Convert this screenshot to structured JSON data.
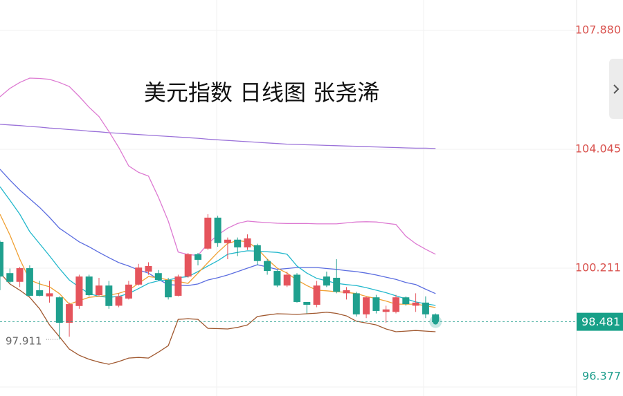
{
  "chart_data": {
    "type": "candlestick",
    "title": "美元指数 日线图 张尧浠",
    "ylim": [
      96.087,
      108.86
    ],
    "yticks": [
      {
        "value": 107.88,
        "label": "107.880"
      },
      104.045,
      100.211,
      96.377
    ],
    "grid": true,
    "up_color": "#e5545c",
    "down_color": "#1fa08e",
    "open": [
      101.06,
      100.05,
      99.77,
      100.21,
      99.5,
      99.3,
      99.27,
      98.45,
      98.99,
      99.94,
      99.34,
      99.65,
      99.0,
      99.23,
      99.68,
      100.1,
      100.05,
      99.83,
      99.32,
      99.94,
      100.66,
      100.84,
      101.84,
      101.02,
      101.13,
      100.88,
      100.95,
      100.44,
      100.12,
      99.65,
      100.0,
      99.12,
      99.03,
      99.94,
      99.9,
      99.4,
      99.4,
      98.72,
      99.27,
      98.8,
      98.8,
      99.27,
      99.0,
      99.1,
      98.72
    ],
    "high": [
      101.1,
      100.2,
      100.25,
      100.3,
      99.8,
      99.8,
      99.3,
      99.1,
      100.0,
      100.0,
      99.9,
      99.8,
      99.4,
      99.8,
      100.35,
      100.4,
      100.15,
      99.9,
      100.0,
      100.7,
      100.7,
      101.95,
      101.9,
      101.2,
      101.2,
      101.3,
      101.0,
      100.5,
      100.15,
      100.1,
      100.05,
      99.1,
      99.8,
      100.1,
      100.5,
      99.6,
      99.45,
      99.3,
      99.35,
      99.0,
      99.35,
      99.3,
      99.4,
      99.3,
      98.75
    ],
    "low": [
      99.5,
      99.7,
      99.6,
      99.3,
      99.3,
      99.1,
      97.911,
      98.0,
      98.9,
      99.3,
      99.3,
      98.9,
      98.95,
      99.2,
      99.65,
      100.0,
      99.8,
      99.2,
      99.3,
      99.9,
      100.3,
      100.8,
      100.9,
      100.5,
      100.6,
      100.8,
      100.3,
      100.0,
      99.6,
      99.6,
      99.1,
      98.75,
      98.95,
      99.6,
      99.4,
      99.2,
      98.65,
      98.6,
      98.75,
      98.45,
      98.75,
      99.0,
      98.8,
      98.6,
      98.45
    ],
    "close": [
      99.94,
      99.77,
      100.21,
      99.32,
      99.32,
      99.4,
      98.45,
      99.05,
      99.94,
      99.34,
      99.65,
      98.99,
      99.3,
      99.68,
      100.23,
      100.28,
      99.83,
      99.27,
      99.94,
      100.66,
      100.48,
      101.84,
      101.02,
      101.13,
      100.88,
      101.17,
      100.44,
      100.12,
      99.65,
      100.0,
      99.12,
      99.03,
      99.65,
      99.65,
      99.45,
      99.5,
      98.72,
      99.27,
      98.83,
      98.88,
      99.27,
      99.05,
      99.1,
      98.72,
      98.481
    ],
    "series": [
      {
        "color": "#9b72d9",
        "values": [
          104.85,
          104.83,
          104.81,
          104.78,
          104.76,
          104.73,
          104.71,
          104.68,
          104.66,
          104.63,
          104.61,
          104.58,
          104.56,
          104.54,
          104.52,
          104.5,
          104.48,
          104.46,
          104.44,
          104.42,
          104.4,
          104.37,
          104.35,
          104.33,
          104.31,
          104.29,
          104.27,
          104.25,
          104.23,
          104.21,
          104.2,
          104.19,
          104.18,
          104.17,
          104.16,
          104.15,
          104.14,
          104.13,
          104.12,
          104.11,
          104.1,
          104.09,
          104.08,
          104.08,
          104.07
        ]
      },
      {
        "color": "#dd7ad2",
        "values": [
          105.74,
          106.01,
          106.2,
          106.34,
          106.33,
          106.3,
          106.2,
          106.07,
          105.75,
          105.4,
          105.1,
          104.62,
          104.1,
          103.51,
          103.3,
          103.18,
          102.5,
          101.73,
          100.73,
          100.65,
          100.62,
          101.0,
          101.28,
          101.5,
          101.65,
          101.73,
          101.7,
          101.68,
          101.66,
          101.65,
          101.65,
          101.65,
          101.64,
          101.64,
          101.64,
          101.67,
          101.7,
          101.71,
          101.7,
          101.66,
          101.62,
          101.24,
          101.0,
          100.82,
          100.66
        ]
      },
      {
        "color": "#a0582f",
        "values": [
          100.06,
          99.7,
          99.5,
          99.27,
          98.9,
          98.38,
          98.0,
          97.6,
          97.4,
          97.27,
          97.18,
          97.11,
          97.2,
          97.31,
          97.33,
          97.31,
          97.5,
          97.71,
          98.56,
          98.58,
          98.56,
          98.27,
          98.26,
          98.25,
          98.3,
          98.38,
          98.65,
          98.7,
          98.74,
          98.73,
          98.72,
          98.74,
          98.76,
          98.79,
          98.75,
          98.67,
          98.5,
          98.44,
          98.38,
          98.25,
          98.16,
          98.18,
          98.2,
          98.18,
          98.16
        ]
      },
      {
        "color": "#5b6de0",
        "values": [
          103.4,
          103.05,
          102.73,
          102.45,
          102.17,
          101.85,
          101.5,
          101.28,
          101.06,
          100.9,
          100.72,
          100.55,
          100.39,
          100.28,
          100.15,
          100.05,
          99.85,
          99.68,
          99.66,
          99.65,
          99.7,
          99.83,
          99.9,
          99.99,
          100.1,
          100.21,
          100.32,
          100.25,
          100.17,
          100.2,
          100.23,
          100.23,
          100.23,
          100.2,
          100.17,
          100.13,
          100.1,
          100.05,
          99.99,
          99.92,
          99.85,
          99.75,
          99.68,
          99.53,
          99.39
        ]
      },
      {
        "color": "#22b8cc",
        "values": [
          102.84,
          102.4,
          101.95,
          101.39,
          101.0,
          100.61,
          100.2,
          99.83,
          99.6,
          99.39,
          99.3,
          99.27,
          99.3,
          99.39,
          99.55,
          99.72,
          99.8,
          99.83,
          99.9,
          99.94,
          100.1,
          100.28,
          100.45,
          100.66,
          100.72,
          100.77,
          100.76,
          100.74,
          100.72,
          100.66,
          100.28,
          100.05,
          99.88,
          99.8,
          99.72,
          99.68,
          99.65,
          99.58,
          99.5,
          99.42,
          99.32,
          99.22,
          99.12,
          99.06,
          99.01
        ]
      },
      {
        "color": "#f0a032",
        "values": [
          101.95,
          101.28,
          100.5,
          99.83,
          99.7,
          99.61,
          99.39,
          99.05,
          99.16,
          99.27,
          99.3,
          99.34,
          99.4,
          99.5,
          99.72,
          99.94,
          99.9,
          99.83,
          99.78,
          99.72,
          100.05,
          100.39,
          100.72,
          101.01,
          101.1,
          101.06,
          100.84,
          100.5,
          100.21,
          100.05,
          99.83,
          99.65,
          99.5,
          99.48,
          99.45,
          99.43,
          99.39,
          99.3,
          99.23,
          99.15,
          99.05,
          99.05,
          99.05,
          99.0,
          98.94
        ]
      }
    ]
  }
}
